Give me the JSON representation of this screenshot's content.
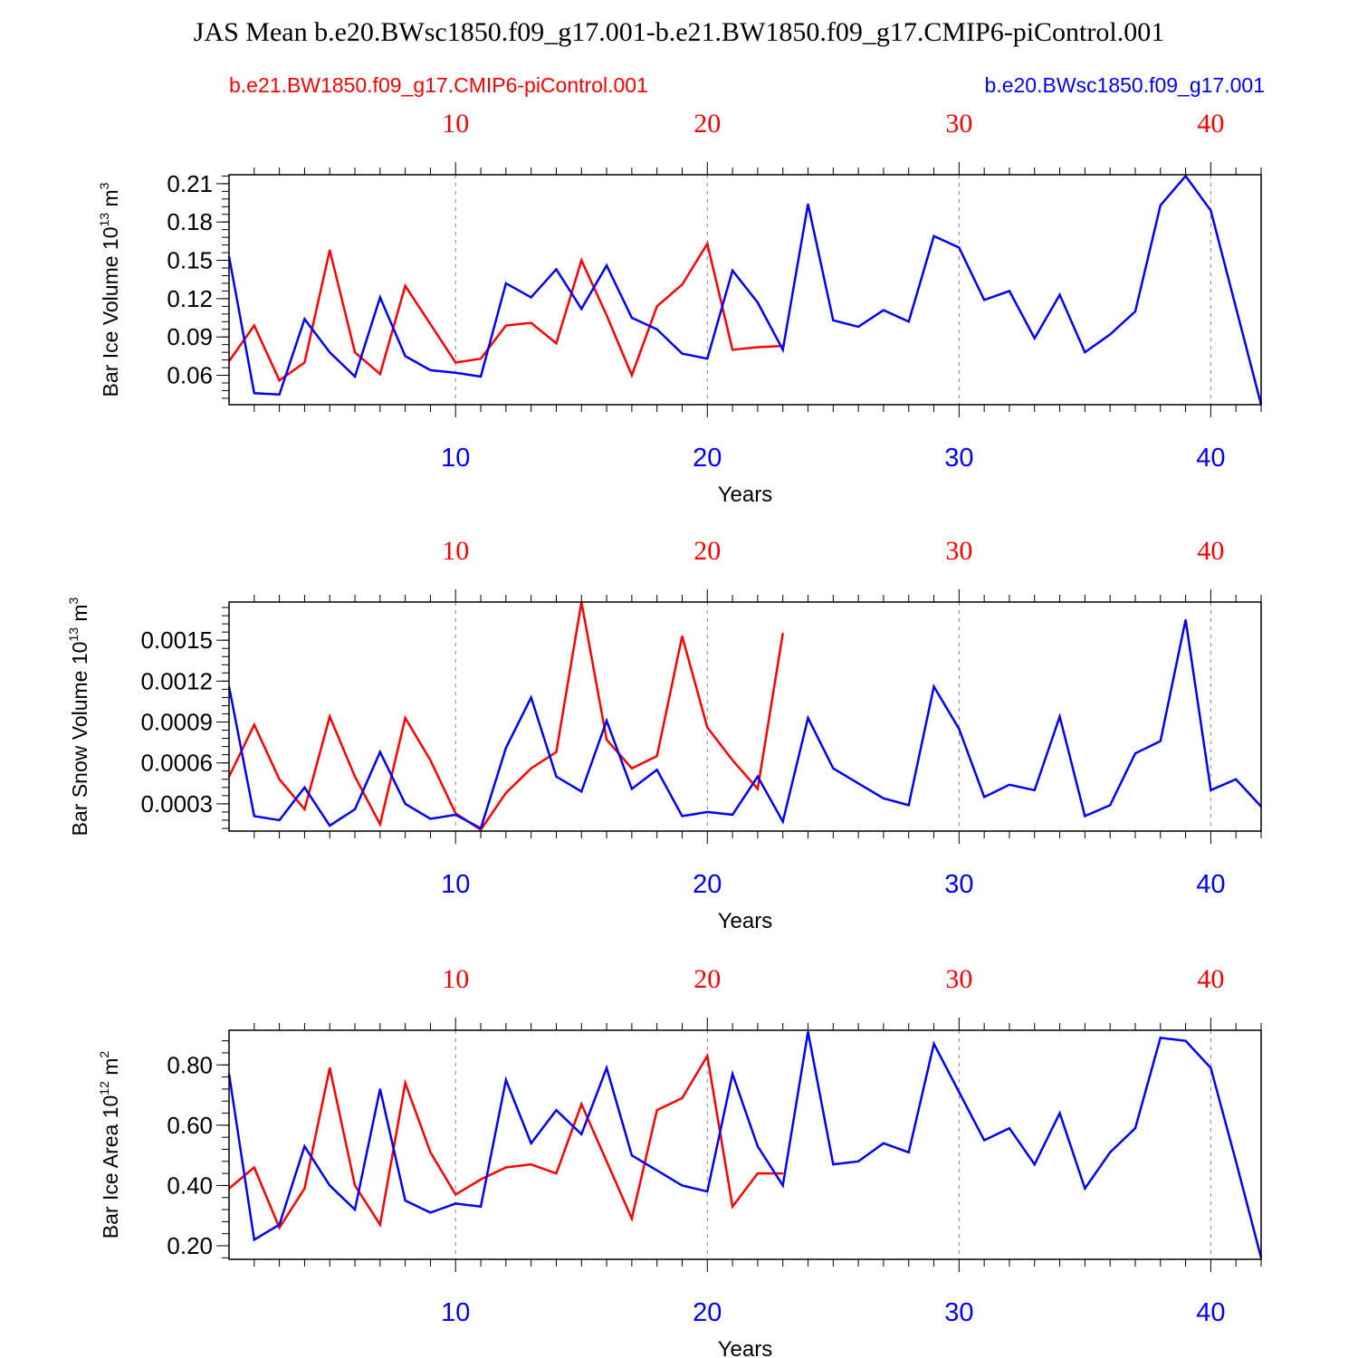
{
  "title": "JAS Mean b.e20.BWsc1850.f09_g17.001-b.e21.BW1850.f09_g17.CMIP6-piControl.001",
  "legend": {
    "red_label": "b.e21.BW1850.f09_g17.CMIP6-piControl.001",
    "blue_label": "b.e20.BWsc1850.f09_g17.001"
  },
  "colors": {
    "red": "#ff0000",
    "blue": "#0000ff",
    "axis": "#000000"
  },
  "x_ticks": [
    "10",
    "20",
    "30",
    "40"
  ],
  "xlabel": "Years",
  "chart_data": [
    {
      "type": "line",
      "ylabel": "Bar Ice Volume 10",
      "ylabel_exp": "13",
      "ylabel_unit": "m",
      "ylabel_unit_exp": "3",
      "xlim": [
        1,
        42
      ],
      "ylim": [
        0.037,
        0.217
      ],
      "yticks": [
        "0.06",
        "0.09",
        "0.12",
        "0.15",
        "0.18",
        "0.21"
      ],
      "series": [
        {
          "name": "b.e21.BW1850.f09_g17.CMIP6-piControl.001",
          "color": "red",
          "x": [
            1,
            2,
            3,
            4,
            5,
            6,
            7,
            8,
            9,
            10,
            11,
            12,
            13,
            14,
            15,
            16,
            17,
            18,
            19,
            20,
            21,
            22,
            23
          ],
          "values": [
            0.071,
            0.099,
            0.056,
            0.07,
            0.158,
            0.078,
            0.061,
            0.13,
            0.1,
            0.07,
            0.073,
            0.099,
            0.101,
            0.085,
            0.15,
            0.107,
            0.06,
            0.114,
            0.131,
            0.163,
            0.08,
            0.082,
            0.083
          ]
        },
        {
          "name": "b.e20.BWsc1850.f09_g17.001",
          "color": "blue",
          "x": [
            1,
            2,
            3,
            4,
            5,
            6,
            7,
            8,
            9,
            10,
            11,
            12,
            13,
            14,
            15,
            16,
            17,
            18,
            19,
            20,
            21,
            22,
            23,
            24,
            25,
            26,
            27,
            28,
            29,
            30,
            31,
            32,
            33,
            34,
            35,
            36,
            37,
            38,
            39,
            40,
            41,
            42
          ],
          "values": [
            0.153,
            0.046,
            0.045,
            0.104,
            0.078,
            0.059,
            0.121,
            0.075,
            0.064,
            0.062,
            0.059,
            0.132,
            0.121,
            0.143,
            0.112,
            0.146,
            0.105,
            0.096,
            0.077,
            0.073,
            0.142,
            0.117,
            0.08,
            0.194,
            0.103,
            0.098,
            0.111,
            0.102,
            0.169,
            0.16,
            0.119,
            0.126,
            0.089,
            0.123,
            0.078,
            0.092,
            0.11,
            0.193,
            0.216,
            0.189,
            0.113,
            0.037
          ]
        }
      ]
    },
    {
      "type": "line",
      "ylabel": "Bar Snow Volume 10",
      "ylabel_exp": "13",
      "ylabel_unit": "m",
      "ylabel_unit_exp": "3",
      "xlim": [
        1,
        42
      ],
      "ylim": [
        0.0001,
        0.00178
      ],
      "yticks": [
        "0.0003",
        "0.0006",
        "0.0009",
        "0.0012",
        "0.0015"
      ],
      "series": [
        {
          "name": "b.e21.BW1850.f09_g17.CMIP6-piControl.001",
          "color": "red",
          "x": [
            1,
            2,
            3,
            4,
            5,
            6,
            7,
            8,
            9,
            10,
            11,
            12,
            13,
            14,
            15,
            16,
            17,
            18,
            19,
            20,
            21,
            22,
            23
          ],
          "values": [
            0.0005,
            0.00088,
            0.00048,
            0.00026,
            0.00094,
            0.0005,
            0.00015,
            0.00093,
            0.00062,
            0.00023,
            0.00011,
            0.00038,
            0.00056,
            0.00068,
            0.00178,
            0.00077,
            0.00056,
            0.00065,
            0.00153,
            0.00086,
            0.00062,
            0.00041,
            0.00155
          ]
        },
        {
          "name": "b.e20.BWsc1850.f09_g17.001",
          "color": "blue",
          "x": [
            1,
            2,
            3,
            4,
            5,
            6,
            7,
            8,
            9,
            10,
            11,
            12,
            13,
            14,
            15,
            16,
            17,
            18,
            19,
            20,
            21,
            22,
            23,
            24,
            25,
            26,
            27,
            28,
            29,
            30,
            31,
            32,
            33,
            34,
            35,
            36,
            37,
            38,
            39,
            40,
            41,
            42
          ],
          "values": [
            0.00116,
            0.00021,
            0.00018,
            0.00042,
            0.00014,
            0.00026,
            0.00068,
            0.0003,
            0.00019,
            0.00022,
            0.00012,
            0.00071,
            0.00108,
            0.0005,
            0.00039,
            0.00091,
            0.00041,
            0.00055,
            0.00021,
            0.00024,
            0.00022,
            0.0005,
            0.00017,
            0.00093,
            0.00056,
            0.00045,
            0.00034,
            0.00029,
            0.00116,
            0.00085,
            0.00035,
            0.00044,
            0.0004,
            0.00094,
            0.00021,
            0.00029,
            0.00067,
            0.00076,
            0.00165,
            0.0004,
            0.00048,
            0.00028
          ]
        }
      ]
    },
    {
      "type": "line",
      "ylabel": "Bar Ice Area 10",
      "ylabel_exp": "12",
      "ylabel_unit": "m",
      "ylabel_unit_exp": "2",
      "xlim": [
        1,
        42
      ],
      "ylim": [
        0.155,
        0.915
      ],
      "yticks": [
        "0.20",
        "0.40",
        "0.60",
        "0.80"
      ],
      "series": [
        {
          "name": "b.e21.BW1850.f09_g17.CMIP6-piControl.001",
          "color": "red",
          "x": [
            1,
            2,
            3,
            4,
            5,
            6,
            7,
            8,
            9,
            10,
            11,
            12,
            13,
            14,
            15,
            16,
            17,
            18,
            19,
            20,
            21,
            22,
            23
          ],
          "values": [
            0.39,
            0.46,
            0.26,
            0.39,
            0.79,
            0.4,
            0.27,
            0.74,
            0.51,
            0.37,
            0.42,
            0.46,
            0.47,
            0.44,
            0.67,
            0.48,
            0.29,
            0.65,
            0.69,
            0.83,
            0.33,
            0.44,
            0.44
          ]
        },
        {
          "name": "b.e20.BWsc1850.f09_g17.001",
          "color": "blue",
          "x": [
            1,
            2,
            3,
            4,
            5,
            6,
            7,
            8,
            9,
            10,
            11,
            12,
            13,
            14,
            15,
            16,
            17,
            18,
            19,
            20,
            21,
            22,
            23,
            24,
            25,
            26,
            27,
            28,
            29,
            30,
            31,
            32,
            33,
            34,
            35,
            36,
            37,
            38,
            39,
            40,
            41,
            42
          ],
          "values": [
            0.77,
            0.22,
            0.27,
            0.53,
            0.4,
            0.32,
            0.72,
            0.35,
            0.31,
            0.34,
            0.33,
            0.75,
            0.54,
            0.65,
            0.57,
            0.79,
            0.5,
            0.45,
            0.4,
            0.38,
            0.77,
            0.53,
            0.4,
            0.91,
            0.47,
            0.48,
            0.54,
            0.51,
            0.87,
            0.71,
            0.55,
            0.59,
            0.47,
            0.64,
            0.39,
            0.51,
            0.59,
            0.89,
            0.88,
            0.79,
            0.48,
            0.16
          ]
        }
      ]
    }
  ]
}
